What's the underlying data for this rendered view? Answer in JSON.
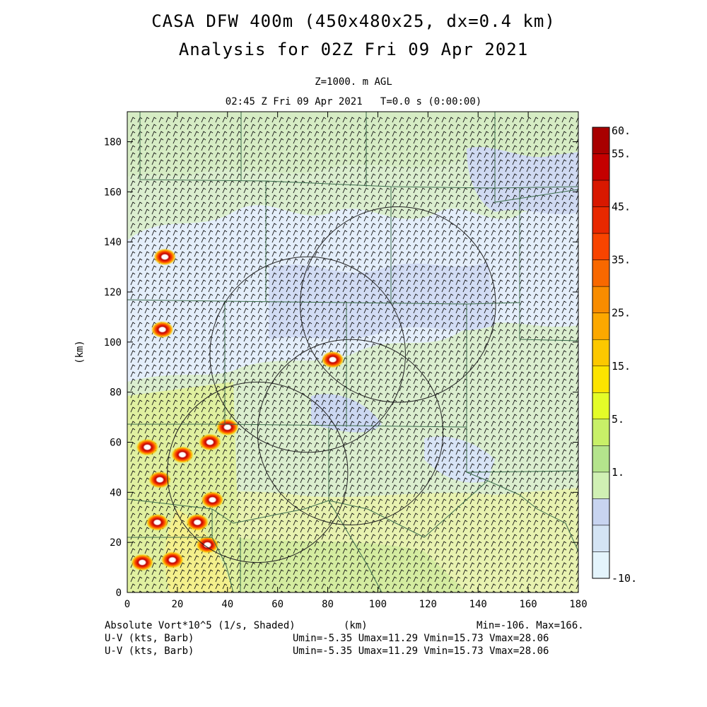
{
  "header": {
    "title_line1": "CASA DFW 400m (450x480x25, dx=0.4 km)",
    "title_line2": "Analysis for 02Z Fri 09 Apr 2021",
    "level": "Z=1000. m AGL",
    "time": "02:45 Z Fri 09 Apr 2021   T=0.0 s (0:00:00)"
  },
  "footer": {
    "field1": "Absolute Vort*10^5 (1/s, Shaded)",
    "field2": "U-V (kts, Barb)",
    "field3": "U-V (kts, Barb)",
    "xunit": "(km)",
    "minmax": "Min=-106. Max=166.",
    "stats2": "Umin=-5.35 Umax=11.29 Vmin=15.73 Vmax=28.06",
    "stats3": "Umin=-5.35 Umax=11.29 Vmin=15.73 Vmax=28.06"
  },
  "chart_data": {
    "type": "heatmap",
    "field": "Absolute Vort*10^5 (1/s, Shaded)",
    "ylabel": "(km)",
    "xlabel": "(km)",
    "xlim": [
      0,
      180
    ],
    "ylim": [
      0,
      192
    ],
    "x_ticks": [
      0,
      20,
      40,
      60,
      80,
      100,
      120,
      140,
      160,
      180
    ],
    "y_ticks": [
      0,
      20,
      40,
      60,
      80,
      100,
      120,
      140,
      160,
      180
    ],
    "colorbar": {
      "labels": [
        "60.",
        "55.",
        "45.",
        "35.",
        "25.",
        "15.",
        "5.",
        "1.",
        "-10."
      ],
      "colors": [
        "#a80000",
        "#c40000",
        "#d81800",
        "#e82800",
        "#f84400",
        "#f86800",
        "#f88c00",
        "#fca800",
        "#fcc800",
        "#fce400",
        "#e4fc28",
        "#c8f068",
        "#b4e48c",
        "#d0f0b4",
        "#c8d4f0",
        "#d4e4f4",
        "#e4f4fc"
      ]
    },
    "rings": [
      {
        "cx": 108,
        "cy": 115,
        "r": 39
      },
      {
        "cx": 72,
        "cy": 95,
        "r": 39
      },
      {
        "cx": 89,
        "cy": 64,
        "r": 37
      },
      {
        "cx": 52,
        "cy": 48,
        "r": 36
      }
    ],
    "vorticity_maxima": [
      {
        "x": 15,
        "y": 134
      },
      {
        "x": 14,
        "y": 105
      },
      {
        "x": 82,
        "y": 93
      },
      {
        "x": 40,
        "y": 66
      },
      {
        "x": 8,
        "y": 58
      },
      {
        "x": 22,
        "y": 55
      },
      {
        "x": 33,
        "y": 60
      },
      {
        "x": 13,
        "y": 45
      },
      {
        "x": 34,
        "y": 37
      },
      {
        "x": 12,
        "y": 28
      },
      {
        "x": 28,
        "y": 28
      },
      {
        "x": 32,
        "y": 19
      },
      {
        "x": 18,
        "y": 13
      },
      {
        "x": 6,
        "y": 12
      }
    ]
  }
}
